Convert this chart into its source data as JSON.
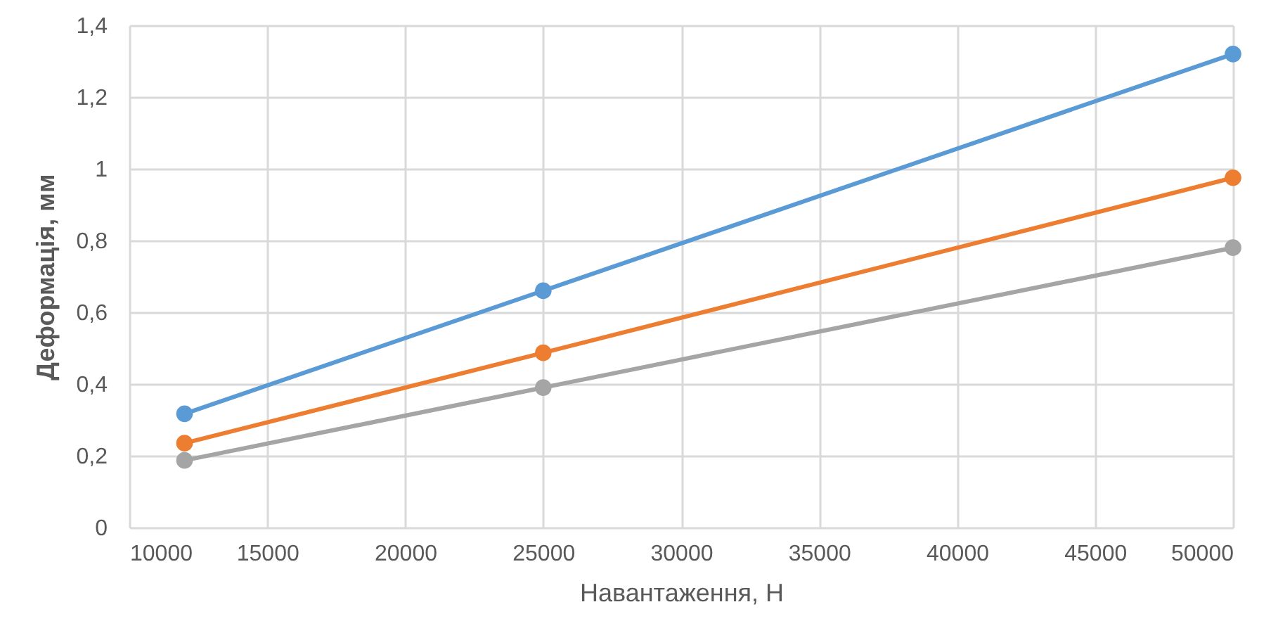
{
  "chart_data": {
    "type": "line",
    "xlabel": "Навантаження, Н",
    "ylabel": "Деформація, мм",
    "x": [
      12000,
      25000,
      50000
    ],
    "series": [
      {
        "color": "#5b9bd5",
        "values": [
          0.317,
          0.66,
          1.32
        ]
      },
      {
        "color": "#ed7d31",
        "values": [
          0.235,
          0.487,
          0.975
        ]
      },
      {
        "color": "#a5a5a5",
        "values": [
          0.187,
          0.39,
          0.78
        ]
      }
    ],
    "xlim": [
      10000,
      50000
    ],
    "xticks": [
      10000,
      15000,
      20000,
      25000,
      30000,
      35000,
      40000,
      45000,
      50000
    ],
    "ylim": [
      0,
      1.4
    ],
    "yticks": [
      0,
      {
        "value": 0.2,
        "label": "0,2"
      },
      {
        "value": 0.4,
        "label": "0,4"
      },
      {
        "value": 0.6,
        "label": "0,6"
      },
      {
        "value": 0.8,
        "label": "0,8"
      },
      1,
      {
        "value": 1.2,
        "label": "1,2"
      },
      {
        "value": 1.4,
        "label": "1,4"
      }
    ],
    "grid": true,
    "marker": "circle",
    "line_style": "solid"
  }
}
